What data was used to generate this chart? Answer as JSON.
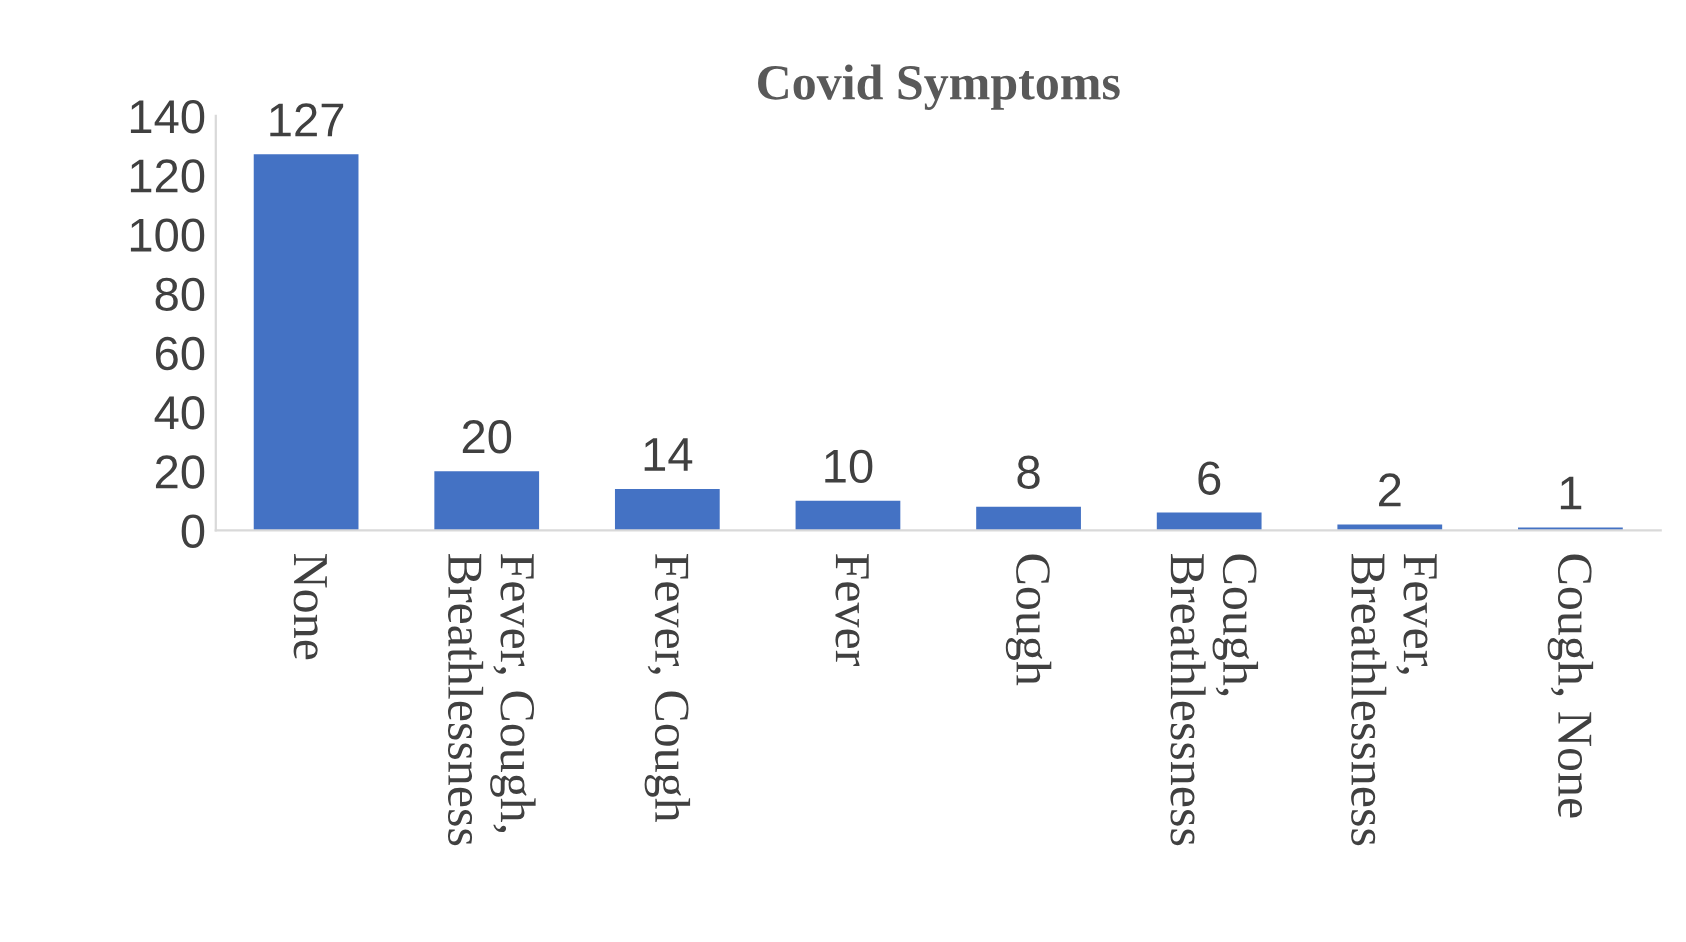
{
  "chart_data": {
    "type": "bar",
    "title": "Covid Symptoms",
    "categories": [
      "None",
      "Fever, Cough,\nBreathlessness",
      "Fever, Cough",
      "Fever",
      "Cough",
      "Cough,\nBreathlessness",
      "Fever,\nBreathlessness",
      "Cough, None"
    ],
    "values": [
      127,
      20,
      14,
      10,
      8,
      6,
      2,
      1
    ],
    "color": "#4472c4",
    "ylim": [
      0,
      140
    ],
    "yticks": [
      0,
      20,
      40,
      60,
      80,
      100,
      120,
      140
    ],
    "data_labels": true,
    "grid": false
  }
}
